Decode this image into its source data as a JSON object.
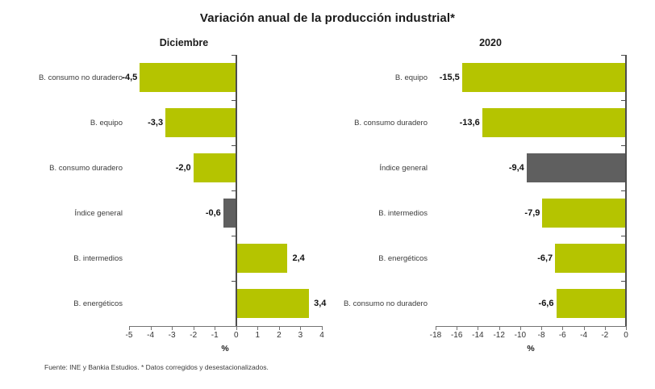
{
  "title": "Variación anual de la producción industrial*",
  "footer": "Fuente: INE y Bankia Estudios. * Datos corregidos y desestacionalizados.",
  "colors": {
    "bar_green": "#b5c400",
    "bar_highlight_gray": "#5f5f5f",
    "axis": "#737373",
    "text_dark": "#1a1a1a"
  },
  "chart_data": [
    {
      "type": "bar",
      "orientation": "horizontal",
      "title": "Diciembre",
      "xlabel": "%",
      "categories": [
        "B. consumo no duradero",
        "B. equipo",
        "B. consumo duradero",
        "Índice general",
        "B. intermedios",
        "B. energéticos"
      ],
      "values": [
        -4.5,
        -3.3,
        -2.0,
        -0.6,
        2.4,
        3.4
      ],
      "value_labels": [
        "-4,5",
        "-3,3",
        "-2,0",
        "-0,6",
        "2,4",
        "3,4"
      ],
      "highlight_category": "Índice general",
      "xlim": [
        -5,
        4
      ],
      "xticks": [
        "-5",
        "-4",
        "-3",
        "-2",
        "-1",
        "0",
        "1",
        "2",
        "3",
        "4"
      ],
      "grid": false,
      "legend": false
    },
    {
      "type": "bar",
      "orientation": "horizontal",
      "title": "2020",
      "xlabel": "%",
      "categories": [
        "B. equipo",
        "B. consumo duradero",
        "Índice general",
        "B. intermedios",
        "B. energéticos",
        "B. consumo no duradero"
      ],
      "values": [
        -15.5,
        -13.6,
        -9.4,
        -7.9,
        -6.7,
        -6.6
      ],
      "value_labels": [
        "-15,5",
        "-13,6",
        "-9,4",
        "-7,9",
        "-6,7",
        "-6,6"
      ],
      "highlight_category": "Índice general",
      "xlim": [
        -18,
        0
      ],
      "xticks": [
        "-18",
        "-16",
        "-14",
        "-12",
        "-10",
        "-8",
        "-6",
        "-4",
        "-2",
        "0"
      ],
      "grid": false,
      "legend": false
    }
  ]
}
